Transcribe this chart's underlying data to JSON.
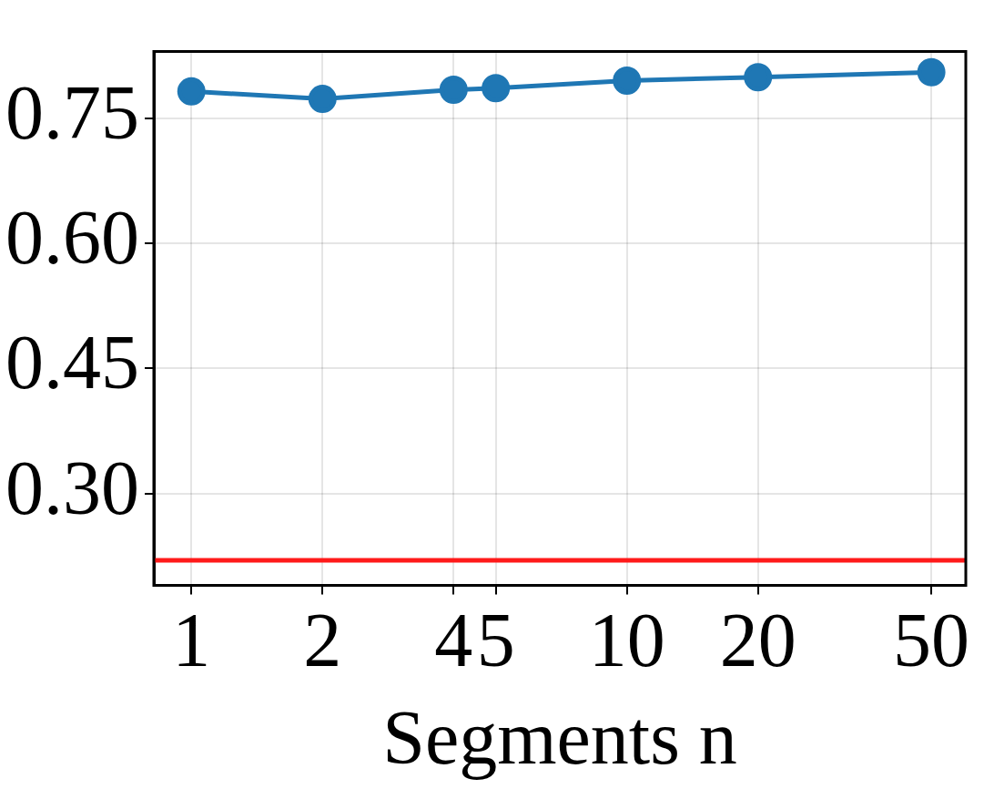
{
  "chart_data": {
    "type": "line",
    "xlabel": "Segments n",
    "log": "x",
    "x": [
      1,
      2,
      4,
      5,
      10,
      20,
      50
    ],
    "series": [
      {
        "color": "#1f77b4",
        "values": [
          0.782,
          0.773,
          0.784,
          0.786,
          0.795,
          0.799,
          0.805
        ]
      }
    ],
    "xlim": [
      0.82,
      60
    ],
    "xticks": [
      1,
      2,
      4,
      5,
      10,
      20,
      50
    ],
    "ylim": [
      0.19,
      0.83
    ],
    "yticks": [
      {
        "value": 0.3,
        "label": "0.30"
      },
      {
        "value": 0.45,
        "label": "0.45"
      },
      {
        "value": 0.6,
        "label": "0.60"
      },
      {
        "value": 0.75,
        "label": "0.75"
      }
    ],
    "ref_lines": [
      {
        "axis": "y",
        "value": 0.22,
        "color": "#ff1a1a"
      }
    ],
    "grid": true,
    "marker": "circle",
    "line_style": "solid",
    "legend": false
  }
}
